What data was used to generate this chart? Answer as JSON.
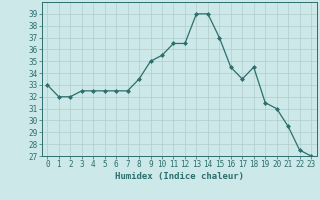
{
  "x": [
    0,
    1,
    2,
    3,
    4,
    5,
    6,
    7,
    8,
    9,
    10,
    11,
    12,
    13,
    14,
    15,
    16,
    17,
    18,
    19,
    20,
    21,
    22,
    23
  ],
  "y": [
    33,
    32,
    32,
    32.5,
    32.5,
    32.5,
    32.5,
    32.5,
    33.5,
    35,
    35.5,
    36.5,
    36.5,
    39,
    39,
    37,
    34.5,
    33.5,
    34.5,
    31.5,
    31,
    29.5,
    27.5,
    27
  ],
  "line_color": "#2d6e6e",
  "marker": "D",
  "marker_size": 2.0,
  "bg_color": "#cce8e8",
  "grid_color": "#b0cccc",
  "xlabel": "Humidex (Indice chaleur)",
  "ylim": [
    27,
    40
  ],
  "xlim": [
    -0.5,
    23.5
  ],
  "yticks": [
    27,
    28,
    29,
    30,
    31,
    32,
    33,
    34,
    35,
    36,
    37,
    38,
    39
  ],
  "xticks": [
    0,
    1,
    2,
    3,
    4,
    5,
    6,
    7,
    8,
    9,
    10,
    11,
    12,
    13,
    14,
    15,
    16,
    17,
    18,
    19,
    20,
    21,
    22,
    23
  ],
  "tick_color": "#2d6e6e",
  "label_fontsize": 6.5,
  "tick_fontsize": 5.5,
  "linewidth": 0.9
}
